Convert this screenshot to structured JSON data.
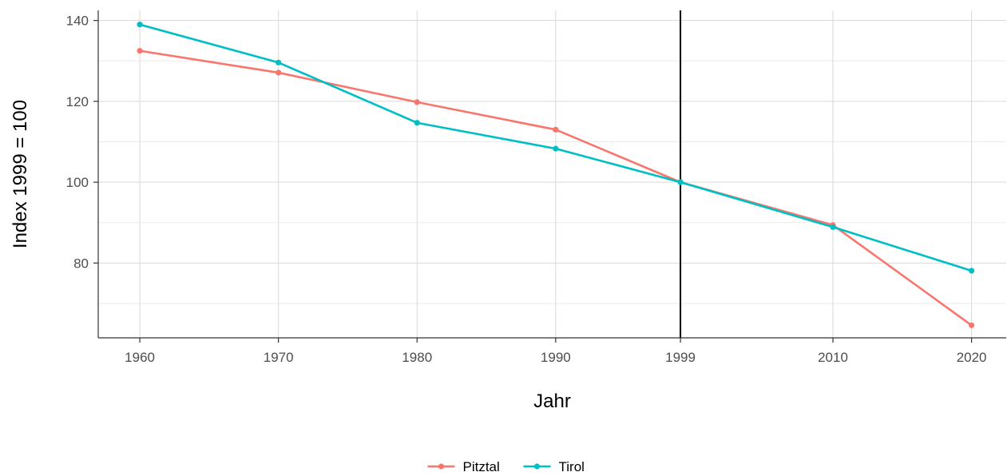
{
  "chart_data": {
    "type": "line",
    "x": [
      1960,
      1970,
      1980,
      1990,
      1999,
      2010,
      2020
    ],
    "x_tick_labels": [
      "1960",
      "1970",
      "1980",
      "1990",
      "1999",
      "2010",
      "2020"
    ],
    "y_ticks": [
      80,
      100,
      120,
      140
    ],
    "y_tick_labels": [
      "80",
      "100",
      "120",
      "140"
    ],
    "series": [
      {
        "name": "Pitztal",
        "color": "#F8766D",
        "values": [
          132.5,
          127.1,
          119.8,
          113.0,
          100.0,
          89.4,
          64.6
        ]
      },
      {
        "name": "Tirol",
        "color": "#00BFC4",
        "values": [
          139.0,
          129.6,
          114.7,
          108.3,
          100.0,
          88.9,
          78.1
        ]
      }
    ],
    "xlabel": "Jahr",
    "ylabel": "Index 1999 = 100",
    "xlim": [
      1957,
      2022.5
    ],
    "ylim": [
      61.5,
      142.5
    ],
    "reference_line_x": 1999,
    "grid": true,
    "legend_position": "bottom"
  }
}
